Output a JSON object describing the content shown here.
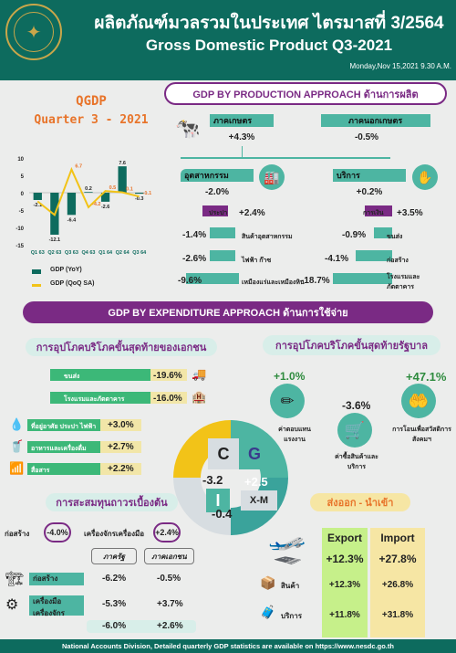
{
  "header": {
    "title_th": "ผลิตภัณฑ์มวลรวมในประเทศ ไตรมาสที่ 3/2564",
    "title_en": "Gross Domestic Product Q3-2021",
    "date": "Monday,Nov 15,2021 9.30 A.M."
  },
  "qgdp": {
    "line1": "QGDP",
    "line2": "Quarter 3 - 2021"
  },
  "chart_data": {
    "type": "bar",
    "categories": [
      "Q1 63",
      "Q2 63",
      "Q3 63",
      "Q4 63",
      "Q1 64",
      "Q2 64",
      "Q3 64"
    ],
    "series": [
      {
        "name": "GDP (YoY)",
        "type": "bar",
        "color": "#0d6b5e",
        "values": [
          -2.1,
          -12.1,
          -6.4,
          0.2,
          -2.6,
          7.6,
          -0.3
        ]
      },
      {
        "name": "GDP (QoQ SA)",
        "type": "line",
        "color": "#f2c318",
        "values": [
          -2.5,
          -6.4,
          6.7,
          -4.2,
          0.5,
          0.1,
          -1.1
        ]
      }
    ],
    "ylim": [
      -15,
      10
    ],
    "yticks": [
      "10",
      "5",
      "0",
      "-5",
      "-10",
      "-15"
    ],
    "bar_labels": [
      "-2.1",
      "-12.1",
      "-6.4",
      "0.2",
      "-2.6",
      "7.6",
      "-0.3"
    ],
    "line_labels": [
      "",
      "",
      "6.7",
      "-4.2",
      "0.5",
      "0.1",
      "-1.1"
    ],
    "legend": [
      "GDP (YoY)",
      "GDP (QoQ SA)"
    ]
  },
  "production": {
    "banner": "GDP BY PRODUCTION APPROACH ด้านการผลิต",
    "agri_label": "ภาคเกษตร",
    "agri_val": "+4.3%",
    "nonagri_label": "ภาคนอกเกษตร",
    "nonagri_val": "-0.5%",
    "ind_label": "อุตสาหกรรม",
    "ind_val": "-2.0%",
    "serv_label": "บริการ",
    "serv_val": "+0.2%",
    "ind_items": [
      {
        "label": "ประปา",
        "val": "+2.4%"
      },
      {
        "label": "สินค้าอุตสาหกรรม",
        "val": "-1.4%"
      },
      {
        "label": "ไฟฟ้า ก๊าซ",
        "val": "-2.6%"
      },
      {
        "label": "เหมืองแร่และเหมืองหิน",
        "val": "-9.6%"
      }
    ],
    "serv_items": [
      {
        "label": "การเงิน",
        "val": "+3.5%"
      },
      {
        "label": "ขนส่ง",
        "val": "-0.9%"
      },
      {
        "label": "ก่อสร้าง",
        "val": "-4.1%"
      },
      {
        "label": "โรงแรมและภัตตาคาร",
        "val": "-18.7%"
      }
    ]
  },
  "expenditure": {
    "banner": "GDP BY EXPENDITURE APPROACH ด้านการใช้จ่าย",
    "private_title": "การอุปโภคบริโภคขั้นสุดท้ายของเอกชน",
    "private_items": [
      {
        "label": "ขนส่ง",
        "val": "-19.6%"
      },
      {
        "label": "โรงแรมและภัตตาคาร",
        "val": "-16.0%"
      },
      {
        "label": "ที่อยู่อาศัย ประปา ไฟฟ้า",
        "val": "+3.0%"
      },
      {
        "label": "อาหารและเครื่องดื่ม",
        "val": "+2.7%"
      },
      {
        "label": "สื่อสาร",
        "val": "+2.2%"
      }
    ],
    "gov_title": "การอุปโภคบริโภคขั้นสุดท้ายรัฐบาล",
    "gov_items": [
      {
        "label": "ค่าตอบแทนแรงงาน",
        "val": "+1.0%"
      },
      {
        "label": "ค่าซื้อสินค้าและบริการ",
        "val": "-3.6%"
      },
      {
        "label": "การโอนเพื่อสวัสดิการสังคมฯ",
        "val": "+47.1%"
      }
    ],
    "wheel": {
      "c": "C",
      "c_val": "-3.2",
      "g": "G",
      "g_val": "+2.5",
      "i": "I",
      "i_val": "-0.4",
      "xm": "X-M"
    },
    "inv_title": "การสะสมทุนถาวรเบื้องต้น",
    "inv_construct": "ก่อสร้าง",
    "inv_construct_val": "-4.0%",
    "inv_machine": "เครื่องจักรเครื่องมือ",
    "inv_machine_val": "+2.4%",
    "inv_table": {
      "headers": [
        "ภาครัฐ",
        "ภาคเอกชน"
      ],
      "rows": [
        {
          "label": "ก่อสร้าง",
          "gov": "-6.2%",
          "priv": "-0.5%"
        },
        {
          "label": "เครื่องมือเครื่องจักร",
          "gov": "-5.3%",
          "priv": "+3.7%"
        },
        {
          "label": "",
          "gov": "-6.0%",
          "priv": "+2.6%"
        }
      ]
    },
    "trade_title": "ส่งออก - นำเข้า",
    "export": "Export",
    "import": "Import",
    "export_val": "+12.3%",
    "import_val": "+27.8%",
    "goods": "สินค้า",
    "goods_exp": "+12.3%",
    "goods_imp": "+26.8%",
    "services": "บริการ",
    "serv_exp": "+11.8%",
    "serv_imp": "+31.8%"
  },
  "footer": "National Accounts Division, Detailed quarterly GDP statistics are available on https://www.nesdc.go.th"
}
